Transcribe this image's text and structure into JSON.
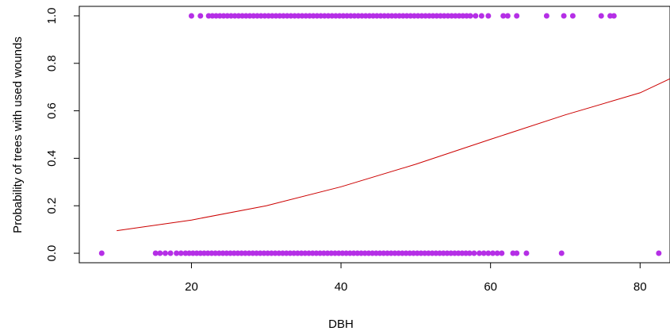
{
  "chart_data": {
    "type": "scatter",
    "title": "",
    "xlabel": "DBH",
    "ylabel": "Probability of trees with used wounds",
    "xlim": [
      5,
      84
    ],
    "ylim": [
      -0.04,
      1.04
    ],
    "x_ticks": [
      20,
      40,
      60,
      80
    ],
    "x_tick_labels": [
      "20",
      "40",
      "60",
      "80"
    ],
    "y_ticks": [
      0.0,
      0.2,
      0.4,
      0.6,
      0.8,
      1.0
    ],
    "y_tick_labels": [
      "0.0",
      "0.2",
      "0.4",
      "0.6",
      "0.8",
      "1.0"
    ],
    "grid": false,
    "point_color": "#b52fe6",
    "line_color": "#cc0000",
    "series": [
      {
        "type": "scatter",
        "x": [
          8.0,
          15.2,
          15.8,
          16.5,
          17.2,
          18.0,
          18.6,
          19.2,
          19.7,
          20.2,
          20.7,
          21.2,
          21.7,
          22.2,
          22.7,
          23.2,
          23.7,
          24.2,
          24.7,
          25.2,
          25.7,
          26.2,
          26.7,
          27.2,
          27.7,
          28.2,
          28.7,
          29.2,
          29.7,
          30.2,
          30.7,
          31.2,
          31.7,
          32.2,
          32.7,
          33.2,
          33.7,
          34.2,
          34.7,
          35.2,
          35.7,
          36.2,
          36.7,
          37.2,
          37.7,
          38.2,
          38.7,
          39.2,
          39.7,
          40.2,
          40.7,
          41.2,
          41.7,
          42.2,
          42.7,
          43.2,
          43.7,
          44.2,
          44.7,
          45.2,
          45.7,
          46.2,
          46.7,
          47.2,
          47.7,
          48.2,
          48.7,
          49.2,
          49.7,
          50.2,
          50.7,
          51.2,
          51.7,
          52.2,
          52.7,
          53.2,
          53.7,
          54.2,
          54.7,
          55.2,
          55.7,
          56.2,
          56.7,
          57.2,
          57.8,
          58.5,
          59.1,
          59.7,
          60.3,
          60.9,
          61.5,
          63.0,
          63.5,
          64.8,
          69.5,
          82.5
        ],
        "y": [
          0,
          0,
          0,
          0,
          0,
          0,
          0,
          0,
          0,
          0,
          0,
          0,
          0,
          0,
          0,
          0,
          0,
          0,
          0,
          0,
          0,
          0,
          0,
          0,
          0,
          0,
          0,
          0,
          0,
          0,
          0,
          0,
          0,
          0,
          0,
          0,
          0,
          0,
          0,
          0,
          0,
          0,
          0,
          0,
          0,
          0,
          0,
          0,
          0,
          0,
          0,
          0,
          0,
          0,
          0,
          0,
          0,
          0,
          0,
          0,
          0,
          0,
          0,
          0,
          0,
          0,
          0,
          0,
          0,
          0,
          0,
          0,
          0,
          0,
          0,
          0,
          0,
          0,
          0,
          0,
          0,
          0,
          0,
          0,
          0,
          0,
          0,
          0,
          0,
          0,
          0,
          0,
          0,
          0,
          0,
          0
        ]
      },
      {
        "type": "scatter",
        "x": [
          20.0,
          21.2,
          22.3,
          22.8,
          23.3,
          23.8,
          24.3,
          24.8,
          25.3,
          25.8,
          26.3,
          26.8,
          27.3,
          27.8,
          28.3,
          28.8,
          29.3,
          29.8,
          30.3,
          30.8,
          31.3,
          31.8,
          32.3,
          32.8,
          33.3,
          33.8,
          34.3,
          34.8,
          35.3,
          35.8,
          36.3,
          36.8,
          37.3,
          37.8,
          38.3,
          38.8,
          39.3,
          39.8,
          40.3,
          40.8,
          41.3,
          41.8,
          42.3,
          42.8,
          43.3,
          43.8,
          44.3,
          44.8,
          45.3,
          45.8,
          46.3,
          46.8,
          47.3,
          47.8,
          48.3,
          48.8,
          49.3,
          49.8,
          50.3,
          50.8,
          51.3,
          51.8,
          52.3,
          52.8,
          53.3,
          53.8,
          54.3,
          54.8,
          55.3,
          55.8,
          56.3,
          56.8,
          57.3,
          58.0,
          58.8,
          59.7,
          61.7,
          62.3,
          63.5,
          67.5,
          69.8,
          71.0,
          74.8,
          76.0,
          76.5
        ],
        "y": [
          1,
          1,
          1,
          1,
          1,
          1,
          1,
          1,
          1,
          1,
          1,
          1,
          1,
          1,
          1,
          1,
          1,
          1,
          1,
          1,
          1,
          1,
          1,
          1,
          1,
          1,
          1,
          1,
          1,
          1,
          1,
          1,
          1,
          1,
          1,
          1,
          1,
          1,
          1,
          1,
          1,
          1,
          1,
          1,
          1,
          1,
          1,
          1,
          1,
          1,
          1,
          1,
          1,
          1,
          1,
          1,
          1,
          1,
          1,
          1,
          1,
          1,
          1,
          1,
          1,
          1,
          1,
          1,
          1,
          1,
          1,
          1,
          1,
          1,
          1,
          1,
          1,
          1,
          1,
          1,
          1,
          1,
          1,
          1,
          1
        ]
      },
      {
        "type": "line",
        "x": [
          10,
          20,
          30,
          40,
          50,
          60,
          70,
          80,
          84
        ],
        "y": [
          0.095,
          0.14,
          0.2,
          0.28,
          0.375,
          0.48,
          0.583,
          0.676,
          0.735
        ]
      }
    ]
  }
}
